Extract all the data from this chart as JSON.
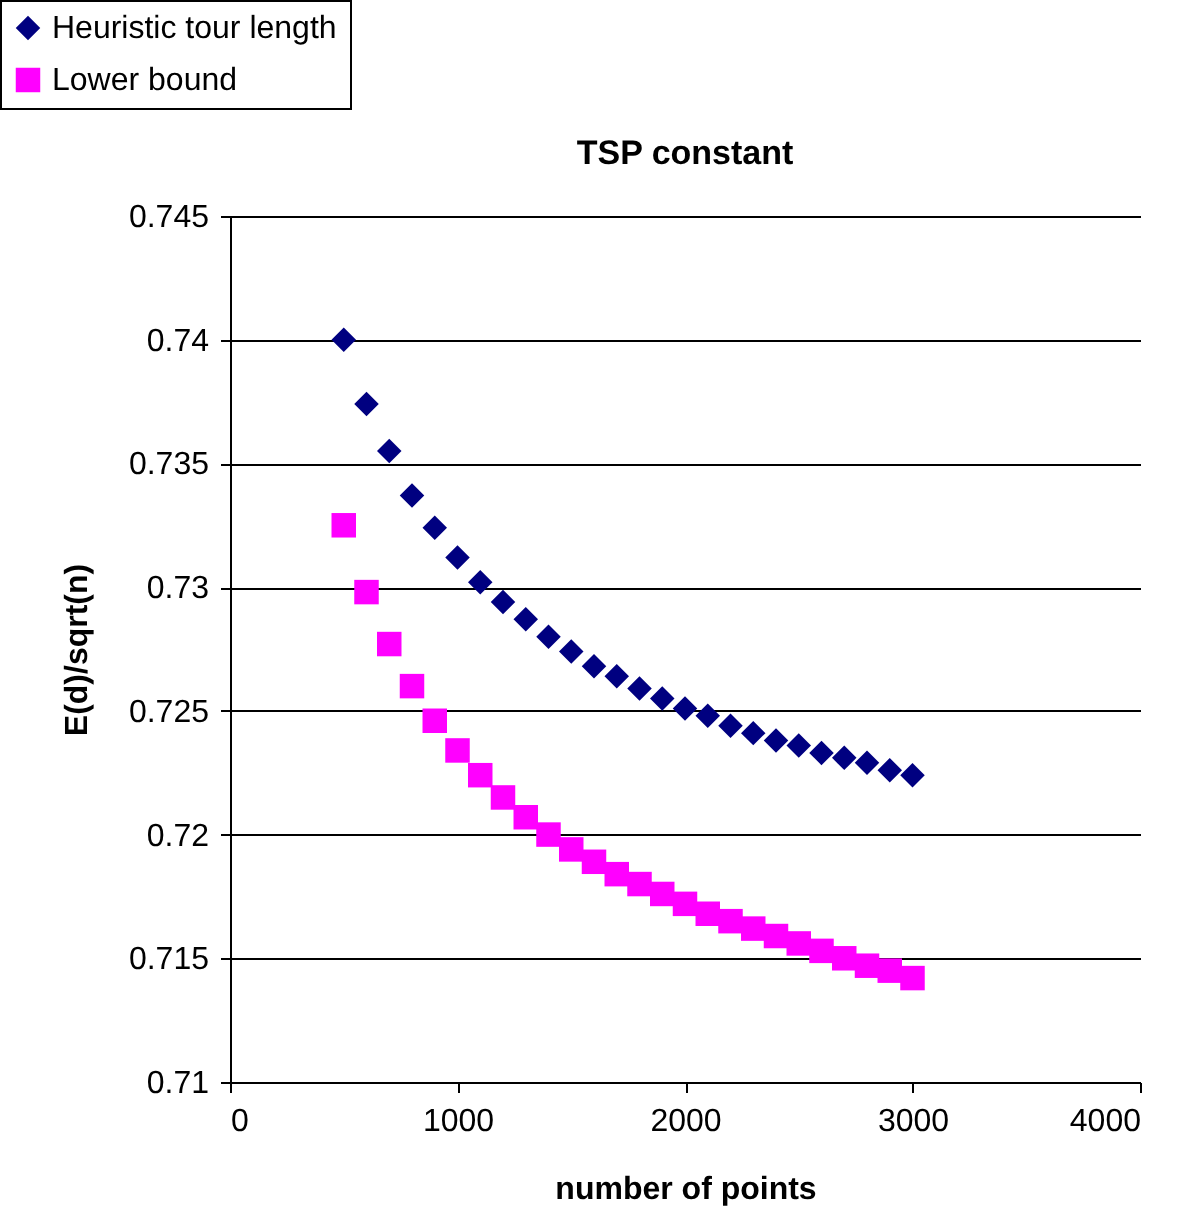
{
  "chart_data": {
    "type": "scatter",
    "title": "TSP constant",
    "xlabel": "number of points",
    "ylabel": "E(d)/sqrt(n)",
    "x": [
      500,
      600,
      700,
      800,
      900,
      1000,
      1100,
      1200,
      1300,
      1400,
      1500,
      1600,
      1700,
      1800,
      1900,
      2000,
      2100,
      2200,
      2300,
      2400,
      2500,
      2600,
      2700,
      2800,
      2900,
      3000
    ],
    "series": [
      {
        "name": "Heuristic tour length",
        "color": "#000080",
        "marker": "diamond",
        "values": [
          0.74,
          0.7374,
          0.7355,
          0.7337,
          0.7324,
          0.7312,
          0.7302,
          0.7294,
          0.7287,
          0.728,
          0.7274,
          0.7268,
          0.7264,
          0.7259,
          0.7255,
          0.7251,
          0.7248,
          0.7244,
          0.7241,
          0.7238,
          0.7236,
          0.7233,
          0.7231,
          0.7229,
          0.7226,
          0.7224
        ]
      },
      {
        "name": "Lower bound",
        "color": "#ff00ff",
        "marker": "square",
        "values": [
          0.7325,
          0.7298,
          0.7277,
          0.726,
          0.7246,
          0.7234,
          0.7224,
          0.7215,
          0.7207,
          0.72,
          0.7194,
          0.7189,
          0.7184,
          0.718,
          0.7176,
          0.7172,
          0.7168,
          0.7165,
          0.7162,
          0.7159,
          0.7156,
          0.7153,
          0.715,
          0.7147,
          0.7145,
          0.7142
        ]
      }
    ],
    "xlim": [
      0,
      4000
    ],
    "xticks": [
      0,
      1000,
      2000,
      3000,
      4000
    ],
    "ylim": [
      0.71,
      0.745
    ],
    "yticks": [
      0.71,
      0.715,
      0.72,
      0.725,
      0.73,
      0.735,
      0.74,
      0.745
    ],
    "grid": "y",
    "legend": "top left"
  }
}
